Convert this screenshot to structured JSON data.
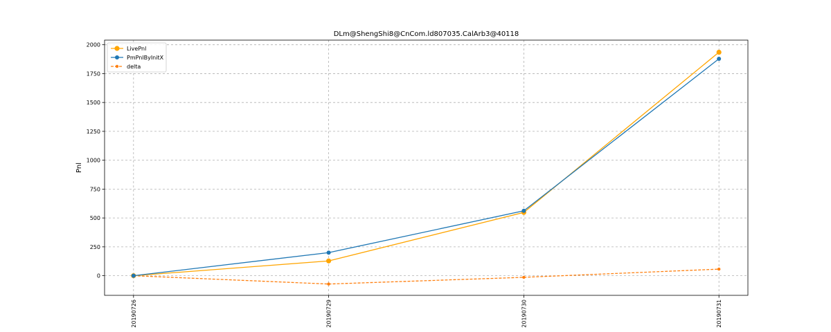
{
  "chart_data": {
    "type": "line",
    "title": "DLm@ShengShi8@CnCom.ld807035.CalArb3@40118",
    "xlabel": "",
    "ylabel": "Pnl",
    "categories": [
      "20190726",
      "20190729",
      "20190730",
      "20190731"
    ],
    "ylim": [
      -170,
      2040
    ],
    "yticks": [
      0,
      250,
      500,
      750,
      1000,
      1250,
      1500,
      1750,
      2000
    ],
    "grid": true,
    "legend_position": "top-left",
    "series": [
      {
        "name": "LivePnl",
        "values": [
          0,
          128,
          548,
          1935
        ],
        "color": "#ffa500",
        "style": "solid",
        "marker": "large-circle"
      },
      {
        "name": "PmPnlByInitX",
        "values": [
          0,
          200,
          562,
          1878
        ],
        "color": "#1f77b4",
        "style": "solid",
        "marker": "circle"
      },
      {
        "name": "delta",
        "values": [
          0,
          -72,
          -14,
          57
        ],
        "color": "#ff7f0e",
        "style": "dashed",
        "marker": "small-circle"
      }
    ]
  }
}
